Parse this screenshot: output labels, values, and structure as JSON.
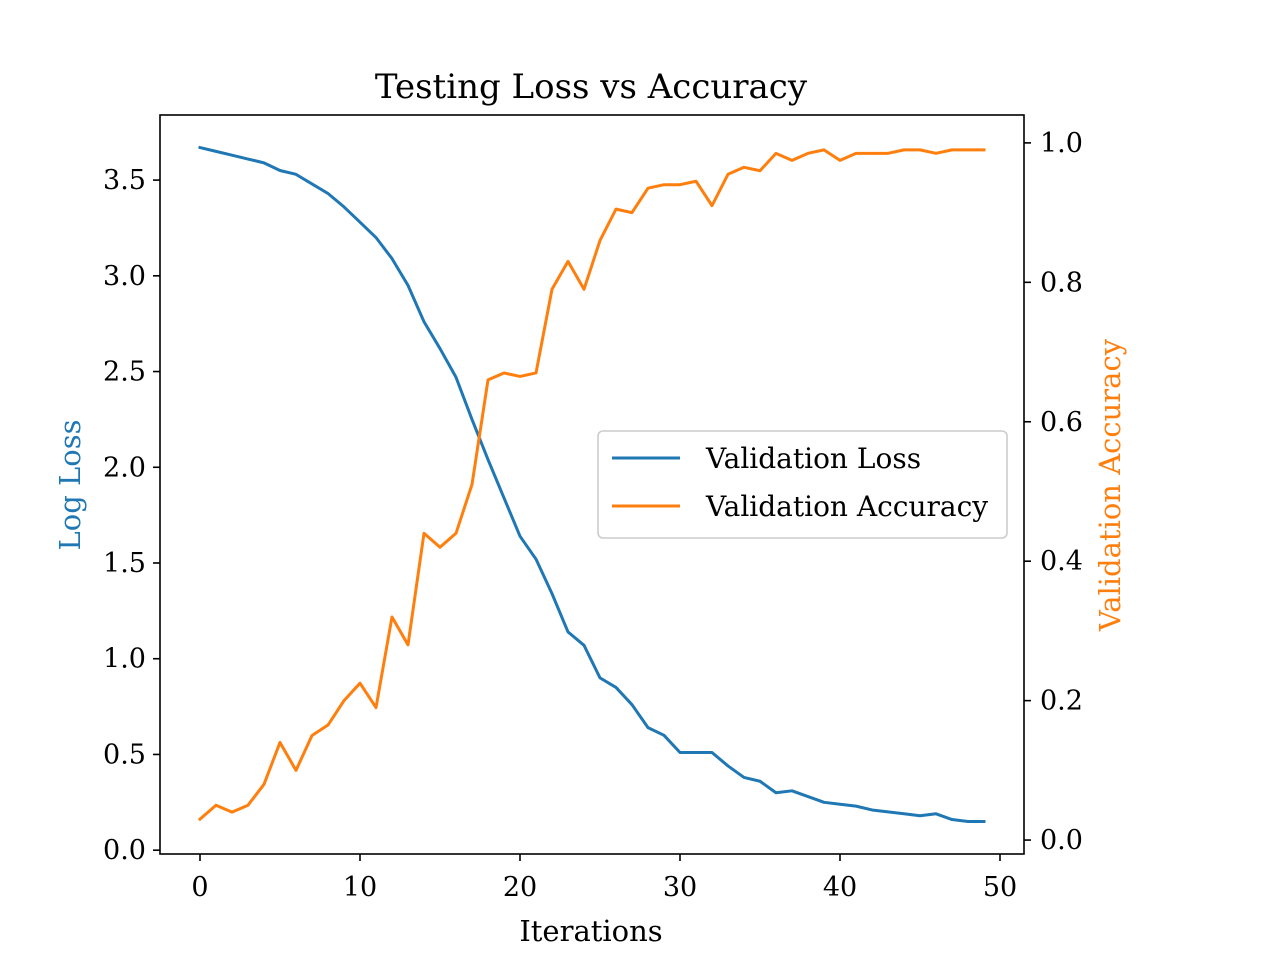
{
  "chart_data": {
    "type": "line",
    "title": "Testing Loss vs Accuracy",
    "xlabel": "Iterations",
    "ylabel_left": "Log Loss",
    "ylabel_right": "Validation Accuracy",
    "xlim": [
      -2.5,
      51.5
    ],
    "ylim_left": [
      -0.02,
      3.84
    ],
    "ylim_right": [
      -0.02,
      1.04
    ],
    "xticks": [
      "0",
      "10",
      "20",
      "30",
      "40",
      "50"
    ],
    "xtick_values": [
      0,
      10,
      20,
      30,
      40,
      50
    ],
    "yticks_left": [
      "0.0",
      "0.5",
      "1.0",
      "1.5",
      "2.0",
      "2.5",
      "3.0",
      "3.5"
    ],
    "ytick_values_left": [
      0,
      0.5,
      1.0,
      1.5,
      2.0,
      2.5,
      3.0,
      3.5
    ],
    "yticks_right": [
      "0.0",
      "0.2",
      "0.4",
      "0.6",
      "0.8",
      "1.0"
    ],
    "ytick_values_right": [
      0,
      0.2,
      0.4,
      0.6,
      0.8,
      1.0
    ],
    "grid": false,
    "legend_position": "center-right",
    "x": [
      0,
      1,
      2,
      3,
      4,
      5,
      6,
      7,
      8,
      9,
      10,
      11,
      12,
      13,
      14,
      15,
      16,
      17,
      18,
      19,
      20,
      21,
      22,
      23,
      24,
      25,
      26,
      27,
      28,
      29,
      30,
      31,
      32,
      33,
      34,
      35,
      36,
      37,
      38,
      39,
      40,
      41,
      42,
      43,
      44,
      45,
      46,
      47,
      48,
      49
    ],
    "series": [
      {
        "name": "Validation Loss",
        "axis": "left",
        "color": "#1f77b4",
        "values": [
          3.67,
          3.65,
          3.63,
          3.61,
          3.59,
          3.55,
          3.53,
          3.48,
          3.43,
          3.36,
          3.28,
          3.2,
          3.09,
          2.95,
          2.76,
          2.62,
          2.47,
          2.25,
          2.04,
          1.84,
          1.64,
          1.52,
          1.34,
          1.14,
          1.07,
          0.9,
          0.85,
          0.76,
          0.64,
          0.6,
          0.51,
          0.51,
          0.51,
          0.44,
          0.38,
          0.36,
          0.3,
          0.31,
          0.28,
          0.25,
          0.24,
          0.23,
          0.21,
          0.2,
          0.19,
          0.18,
          0.19,
          0.16,
          0.15,
          0.15
        ]
      },
      {
        "name": "Validation Accuracy",
        "axis": "right",
        "color": "#ff7f0e",
        "values": [
          0.03,
          0.05,
          0.04,
          0.05,
          0.08,
          0.14,
          0.1,
          0.15,
          0.165,
          0.2,
          0.225,
          0.19,
          0.32,
          0.28,
          0.44,
          0.42,
          0.44,
          0.51,
          0.66,
          0.67,
          0.665,
          0.67,
          0.79,
          0.83,
          0.79,
          0.86,
          0.905,
          0.9,
          0.935,
          0.94,
          0.94,
          0.945,
          0.91,
          0.955,
          0.965,
          0.96,
          0.985,
          0.975,
          0.985,
          0.99,
          0.975,
          0.985,
          0.985,
          0.985,
          0.99,
          0.99,
          0.985,
          0.99,
          0.99,
          0.99
        ]
      }
    ]
  }
}
